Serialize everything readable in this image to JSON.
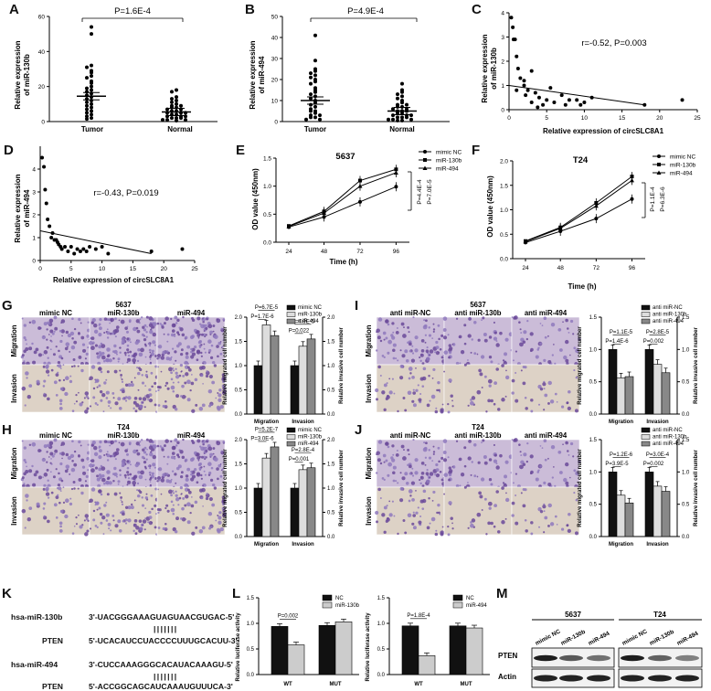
{
  "panels": {
    "A": "A",
    "B": "B",
    "C": "C",
    "D": "D",
    "E": "E",
    "F": "F",
    "G": "G",
    "H": "H",
    "I": "I",
    "J": "J",
    "K": "K",
    "L": "L",
    "M": "M"
  },
  "A": {
    "pval": "P=1.6E-4",
    "ylabel": [
      "Relative expression",
      "of miR-130b"
    ],
    "yticks": [
      "0",
      "20",
      "40",
      "60"
    ],
    "groups": [
      "Tumor",
      "Normal"
    ],
    "chart_data": {
      "type": "scatter",
      "categories": [
        "Tumor",
        "Normal"
      ],
      "ylim": [
        0,
        60
      ],
      "means": [
        14.5,
        5.5
      ],
      "series": [
        {
          "name": "Tumor",
          "values": [
            54,
            50,
            32,
            31,
            29,
            28,
            26,
            25,
            23,
            22,
            20,
            19,
            18,
            17,
            16,
            15,
            14,
            13,
            12,
            11,
            10,
            9,
            8,
            7,
            6,
            5,
            4,
            3,
            2,
            1.5
          ]
        },
        {
          "name": "Normal",
          "values": [
            18,
            17,
            14,
            13,
            12,
            11,
            10,
            9,
            9,
            8,
            8,
            7,
            7,
            6,
            6,
            5,
            5,
            5,
            4,
            4,
            3,
            3,
            3,
            2,
            2,
            2,
            1,
            1,
            1,
            0.5
          ]
        }
      ]
    }
  },
  "B": {
    "pval": "P=4.9E-4",
    "ylabel": [
      "Relative expression",
      "of miR-494"
    ],
    "yticks": [
      "0",
      "10",
      "20",
      "30",
      "40",
      "50"
    ],
    "groups": [
      "Tumor",
      "Normal"
    ],
    "chart_data": {
      "type": "scatter",
      "categories": [
        "Tumor",
        "Normal"
      ],
      "ylim": [
        0,
        50
      ],
      "means": [
        10,
        5
      ],
      "series": [
        {
          "name": "Tumor",
          "values": [
            41,
            29,
            25,
            24,
            23,
            22,
            21,
            20,
            19,
            18,
            16,
            15,
            14,
            13,
            12,
            11,
            10,
            9,
            8,
            7,
            6,
            5,
            5,
            4,
            3,
            3,
            2,
            2,
            1,
            1
          ]
        },
        {
          "name": "Normal",
          "values": [
            18,
            15,
            14,
            13,
            12,
            11,
            10,
            9,
            8,
            8,
            7,
            7,
            6,
            6,
            5,
            5,
            5,
            4,
            4,
            3,
            3,
            3,
            2,
            2,
            2,
            1,
            1,
            1,
            0.5,
            0.5
          ]
        }
      ]
    }
  },
  "C": {
    "stat": "r=-0.52, P=0.003",
    "ylabel": [
      "Relative expression",
      "of miR-130b"
    ],
    "xlabel": "Relative expression of circSLC8A1",
    "xticks": [
      "0",
      "5",
      "10",
      "15",
      "20",
      "25"
    ],
    "yticks": [
      "0",
      "1",
      "2",
      "3",
      "4"
    ],
    "chart_data": {
      "type": "scatter",
      "xlim": [
        0,
        25
      ],
      "ylim": [
        0,
        4
      ],
      "fit": [
        [
          0,
          1.0
        ],
        [
          18,
          0.2
        ]
      ],
      "x": [
        0.3,
        0.5,
        0.8,
        1,
        1.2,
        1.5,
        2,
        2,
        2.5,
        3,
        3,
        3.5,
        4,
        4.5,
        5,
        5.5,
        6,
        7,
        7.5,
        8,
        9,
        10,
        11,
        18,
        23,
        1,
        0.6,
        2.2,
        3.8,
        9.5
      ],
      "y": [
        3.8,
        3.4,
        2.9,
        2.2,
        1.7,
        1.3,
        1.2,
        1,
        0.8,
        1.6,
        0.3,
        0.7,
        0.5,
        0.2,
        0.4,
        0.9,
        0.3,
        0.6,
        0.2,
        0.4,
        0.4,
        0.3,
        0.5,
        0.2,
        0.4,
        0.8,
        2.9,
        0.6,
        0.1,
        0.2
      ]
    }
  },
  "D": {
    "stat": "r=-0.43, P=0.019",
    "ylabel": [
      "Relative expression",
      "of miR-494"
    ],
    "xlabel": "Relative expression of circSLC8A1",
    "xticks": [
      "0",
      "5",
      "10",
      "15",
      "20",
      "25"
    ],
    "yticks": [
      "0",
      "1",
      "2",
      "3",
      "4"
    ],
    "chart_data": {
      "type": "scatter",
      "xlim": [
        0,
        25
      ],
      "ylim": [
        0,
        5
      ],
      "fit": [
        [
          0,
          1.3
        ],
        [
          18,
          0.3
        ]
      ],
      "x": [
        0.3,
        0.6,
        0.8,
        1,
        1.2,
        1.5,
        2,
        2.3,
        2.8,
        3,
        3.5,
        4,
        4.5,
        5,
        5.5,
        6,
        7,
        7.5,
        8,
        9,
        10,
        11,
        18,
        23,
        1.8,
        2.6,
        3.3,
        6.5
      ],
      "y": [
        4.5,
        4.1,
        3.1,
        2.5,
        1.8,
        1.5,
        1.2,
        0.9,
        0.8,
        0.7,
        0.5,
        0.6,
        0.4,
        0.6,
        0.3,
        0.5,
        0.5,
        0.4,
        0.6,
        0.5,
        0.6,
        0.3,
        0.4,
        0.5,
        1.0,
        0.9,
        0.6,
        0.4
      ]
    }
  },
  "E": {
    "title": "5637",
    "ylabel": "OD value (450nm)",
    "xlabel": "Time (h)",
    "xticks": [
      "24",
      "48",
      "72",
      "96"
    ],
    "yticks": [
      "0.0",
      "0.5",
      "1.0",
      "1.5"
    ],
    "legend": [
      "mimic NC",
      "miR-130b",
      "miR-494"
    ],
    "p1": "P=4.4E-4",
    "p2": "P=7.0E-5",
    "chart_data": {
      "type": "line",
      "x": [
        24,
        48,
        72,
        96
      ],
      "ylim": [
        0,
        1.5
      ],
      "series": [
        {
          "name": "mimic NC",
          "values": [
            0.27,
            0.45,
            0.72,
            0.99
          ]
        },
        {
          "name": "miR-130b",
          "values": [
            0.29,
            0.55,
            1.1,
            1.3
          ]
        },
        {
          "name": "miR-494",
          "values": [
            0.28,
            0.52,
            1.0,
            1.24
          ]
        }
      ]
    }
  },
  "F": {
    "title": "T24",
    "ylabel": "OD value (450nm)",
    "xlabel": "Time (h)",
    "xticks": [
      "24",
      "48",
      "72",
      "96"
    ],
    "yticks": [
      "0.0",
      "0.5",
      "1.0",
      "1.5",
      "2.0"
    ],
    "legend": [
      "mimic NC",
      "miR-130b",
      "miR-494"
    ],
    "p1": "P=1.1E-4",
    "p2": "P=6.3E-6",
    "chart_data": {
      "type": "line",
      "x": [
        24,
        48,
        72,
        96
      ],
      "ylim": [
        0,
        2.0
      ],
      "series": [
        {
          "name": "mimic NC",
          "values": [
            0.33,
            0.56,
            0.82,
            1.22
          ]
        },
        {
          "name": "miR-130b",
          "values": [
            0.36,
            0.64,
            1.14,
            1.68
          ]
        },
        {
          "name": "miR-494",
          "values": [
            0.35,
            0.62,
            1.08,
            1.6
          ]
        }
      ]
    }
  },
  "G": {
    "cell": "5637",
    "cols": [
      "mimic NC",
      "miR-130b",
      "miR-494"
    ],
    "rows": [
      "Migration",
      "Invasion"
    ],
    "ylabel_left": "Relative migrated cell number",
    "ylabel_right": "Relative invasive cell number",
    "legend": [
      "mimic NC",
      "miR-130b",
      "miR-494"
    ],
    "groups": [
      "Migration",
      "Invasion"
    ],
    "pvals": [
      "P=6.7E-5",
      "P=1.7E-6",
      "P=4.9E-5",
      "P=0.022"
    ],
    "yticks": [
      "0.0",
      "0.5",
      "1.0",
      "1.5",
      "2.0"
    ],
    "chart_data": {
      "type": "bar",
      "categories": [
        "Migration",
        "Invasion"
      ],
      "ylim": [
        0,
        2
      ],
      "series": [
        {
          "name": "mimic NC",
          "values": [
            1.0,
            1.0
          ]
        },
        {
          "name": "miR-130b",
          "values": [
            1.84,
            1.4
          ]
        },
        {
          "name": "miR-494",
          "values": [
            1.62,
            1.55
          ]
        }
      ]
    }
  },
  "H": {
    "cell": "T24",
    "cols": [
      "mimic NC",
      "miR-130b",
      "miR-494"
    ],
    "rows": [
      "Migration",
      "Invasion"
    ],
    "ylabel_left": "Relative migrated cell number",
    "ylabel_right": "Relative invasive cell number",
    "legend": [
      "mimic NC",
      "miR-130b",
      "miR-494"
    ],
    "groups": [
      "Migration",
      "Invasion"
    ],
    "pvals": [
      "P=5.2E-7",
      "P=3.0E-6",
      "P=2.8E-4",
      "P=0.001"
    ],
    "yticks": [
      "0.0",
      "0.5",
      "1.0",
      "1.5",
      "2.0"
    ],
    "chart_data": {
      "type": "bar",
      "categories": [
        "Migration",
        "Invasion"
      ],
      "ylim": [
        0,
        2
      ],
      "series": [
        {
          "name": "mimic NC",
          "values": [
            1.0,
            1.0
          ]
        },
        {
          "name": "miR-130b",
          "values": [
            1.62,
            1.38
          ]
        },
        {
          "name": "miR-494",
          "values": [
            1.85,
            1.42
          ]
        }
      ]
    }
  },
  "I": {
    "cell": "5637",
    "cols": [
      "anti miR-NC",
      "anti miR-130b",
      "anti miR-494"
    ],
    "rows": [
      "Migration",
      "Invasion"
    ],
    "ylabel_left": "Relative migrated cell number",
    "ylabel_right": "Relative invasive cell number",
    "legend": [
      "anti miR-NC",
      "anti miR-130b",
      "anti miR-494"
    ],
    "groups": [
      "Migration",
      "Invasion"
    ],
    "pvals": [
      "P=1.1E-5",
      "P=1.4E-6",
      "P=2.8E-5",
      "P=0.002"
    ],
    "yticks": [
      "0.0",
      "0.5",
      "1.0",
      "1.5"
    ],
    "chart_data": {
      "type": "bar",
      "categories": [
        "Migration",
        "Invasion"
      ],
      "ylim": [
        0,
        1.5
      ],
      "series": [
        {
          "name": "anti miR-NC",
          "values": [
            1.0,
            1.0
          ]
        },
        {
          "name": "anti miR-130b",
          "values": [
            0.56,
            0.77
          ]
        },
        {
          "name": "anti miR-494",
          "values": [
            0.58,
            0.64
          ]
        }
      ]
    }
  },
  "J": {
    "cell": "T24",
    "cols": [
      "anti miR-NC",
      "anti miR-130b",
      "anti miR-494"
    ],
    "rows": [
      "Migration",
      "Invasion"
    ],
    "ylabel_left": "Relative migrated cell number",
    "ylabel_right": "Relative invasive cell number",
    "legend": [
      "anti miR-NC",
      "anti miR-130b",
      "anti miR-494"
    ],
    "groups": [
      "Migration",
      "Invasion"
    ],
    "pvals": [
      "P=1.2E-6",
      "P=3.9E-5",
      "P=3.0E-4",
      "P=0.002"
    ],
    "yticks": [
      "0.0",
      "0.5",
      "1.0",
      "1.5"
    ],
    "chart_data": {
      "type": "bar",
      "categories": [
        "Migration",
        "Invasion"
      ],
      "ylim": [
        0,
        1.5
      ],
      "series": [
        {
          "name": "anti miR-NC",
          "values": [
            1.0,
            1.0
          ]
        },
        {
          "name": "anti miR-130b",
          "values": [
            0.64,
            0.78
          ]
        },
        {
          "name": "anti miR-494",
          "values": [
            0.52,
            0.7
          ]
        }
      ]
    }
  },
  "K": {
    "rows": [
      {
        "name": "hsa-miR-130b",
        "seq": "3'-UACGGGAAAGUAGUAACGUGAC-5'"
      },
      {
        "name": "PTEN",
        "seq": "5'-UCACAUCCUACCCCUUUGCACUU-3'"
      },
      {
        "name": "hsa-miR-494",
        "seq": "3'-CUCCAAAGGGCACAUACAAAGU-5'"
      },
      {
        "name": "PTEN",
        "seq": "5'-ACCGGCAGCAUCAAAUGUUUCA-3'"
      }
    ],
    "pairs1": "| | | | | | |",
    "pairs2": "| | | | | | |"
  },
  "L": {
    "ylabel": "Relative luciferase activity",
    "left": {
      "legend": [
        "NC",
        "miR-130b"
      ],
      "pval": "P=0.002",
      "groups": [
        "WT",
        "MUT"
      ],
      "yticks": [
        "0.0",
        "0.5",
        "1.0",
        "1.5"
      ],
      "chart_data": {
        "type": "bar",
        "categories": [
          "WT",
          "MUT"
        ],
        "ylim": [
          0,
          1.5
        ],
        "series": [
          {
            "name": "NC",
            "values": [
              0.94,
              0.96
            ]
          },
          {
            "name": "miR-130b",
            "values": [
              0.58,
              1.03
            ]
          }
        ]
      }
    },
    "right": {
      "legend": [
        "NC",
        "miR-494"
      ],
      "pval": "P=1.8E-4",
      "groups": [
        "WT",
        "MUT"
      ],
      "yticks": [
        "0.0",
        "0.5",
        "1.0",
        "1.5"
      ],
      "chart_data": {
        "type": "bar",
        "categories": [
          "WT",
          "MUT"
        ],
        "ylim": [
          0,
          1.5
        ],
        "series": [
          {
            "name": "NC",
            "values": [
              0.95,
              0.95
            ]
          },
          {
            "name": "miR-494",
            "values": [
              0.37,
              0.91
            ]
          }
        ]
      }
    }
  },
  "M": {
    "cells": [
      "5637",
      "T24"
    ],
    "lanes": [
      "mimic NC",
      "miR-130b",
      "miR-494",
      "mimic NC",
      "miR-130b",
      "miR-494"
    ],
    "proteins": [
      "PTEN",
      "Actin"
    ],
    "pten_intensity": [
      1.0,
      0.6,
      0.45,
      1.0,
      0.55,
      0.35
    ]
  }
}
